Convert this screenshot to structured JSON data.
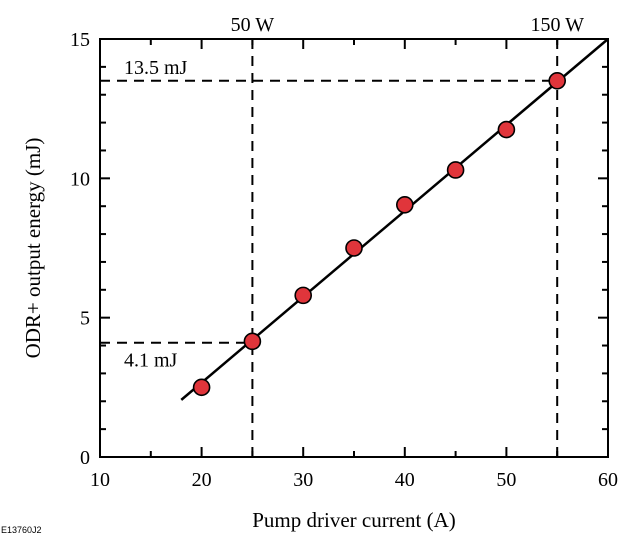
{
  "chart_data": {
    "type": "scatter",
    "title": "",
    "xlabel": "Pump driver current (A)",
    "ylabel": "ODR+ output energy (mJ)",
    "xlim": [
      10,
      60
    ],
    "ylim": [
      0,
      15
    ],
    "xticks": [
      10,
      20,
      30,
      40,
      50,
      60
    ],
    "yticks": [
      0,
      5,
      10,
      15
    ],
    "x_tick_labels": [
      "10",
      "20",
      "30",
      "40",
      "50",
      "60"
    ],
    "y_tick_labels": [
      "0",
      "5",
      "10",
      "15"
    ],
    "grid": false,
    "series": [
      {
        "x": [
          20,
          25,
          30,
          35,
          40,
          45,
          50,
          55
        ],
        "y": [
          2.5,
          4.15,
          5.8,
          7.5,
          9.05,
          10.3,
          11.75,
          13.5
        ],
        "marker_color": "#e0353b"
      }
    ],
    "fit_line": {
      "x": [
        18,
        60
      ],
      "y": [
        2.05,
        15.0
      ],
      "color": "#000000"
    },
    "reference_lines": {
      "vertical": [
        {
          "x": 25,
          "label": "50 W"
        },
        {
          "x": 55,
          "label": "150 W"
        }
      ],
      "horizontal": [
        {
          "y": 4.1,
          "label": "4.1 mJ",
          "to_x": 25
        },
        {
          "y": 13.5,
          "label": "13.5 mJ",
          "to_x": 55
        }
      ]
    },
    "figure_id": "E13760J2"
  }
}
